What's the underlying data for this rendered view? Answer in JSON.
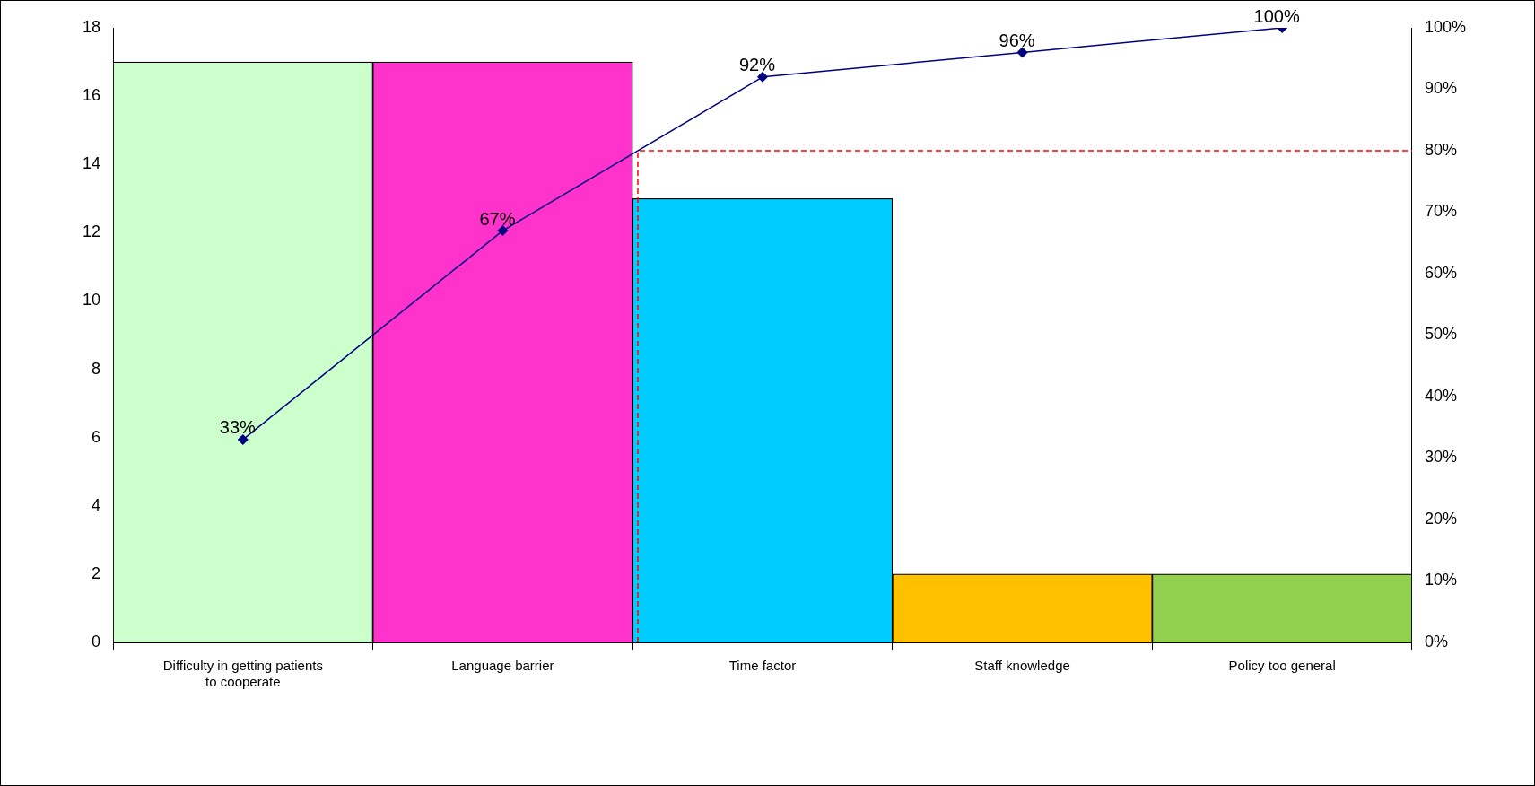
{
  "chart_data": {
    "type": "bar",
    "categories": [
      "Difficulty in getting patients to cooperate",
      "Language barrier",
      "Time factor",
      "Staff knowledge",
      "Policy too general"
    ],
    "series": [
      {
        "colors": [
          "#ccffcc",
          "#ff33cc",
          "#00ccff",
          "#ffc000",
          "#92d050"
        ],
        "values": [
          17,
          17,
          13,
          2,
          2
        ]
      },
      {
        "type": "line",
        "axis": "y2",
        "color": "#000080",
        "values": [
          33,
          67,
          92,
          96,
          100
        ],
        "value_labels": [
          "33%",
          "67%",
          "92%",
          "96%",
          "100%"
        ]
      }
    ],
    "ylim": [
      0,
      18
    ],
    "yticks": [
      0,
      2,
      4,
      6,
      8,
      10,
      12,
      14,
      16,
      18
    ],
    "y2lim": [
      0,
      100
    ],
    "y2ticks": [
      {
        "value": 0,
        "label": "0%"
      },
      {
        "value": 10,
        "label": "10%"
      },
      {
        "value": 20,
        "label": "20%"
      },
      {
        "value": 30,
        "label": "30%"
      },
      {
        "value": 40,
        "label": "40%"
      },
      {
        "value": 50,
        "label": "50%"
      },
      {
        "value": 60,
        "label": "60%"
      },
      {
        "value": 70,
        "label": "70%"
      },
      {
        "value": 80,
        "label": "80%"
      },
      {
        "value": 90,
        "label": "90%"
      },
      {
        "value": 100,
        "label": "100%"
      }
    ],
    "ref_lines": [
      {
        "axis": "y2",
        "value": 80,
        "color": "#ff0000",
        "line_style": "dashed"
      }
    ],
    "marker": "diamond",
    "grid": false,
    "legend": false
  }
}
